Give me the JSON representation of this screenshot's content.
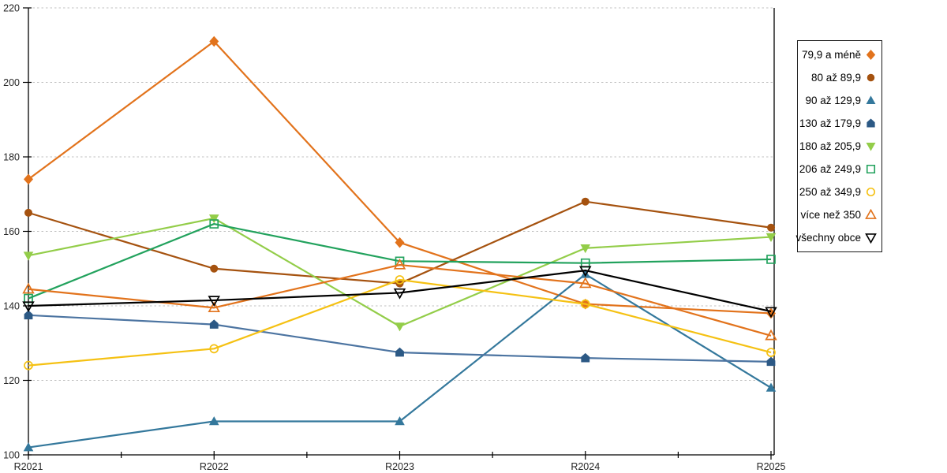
{
  "chart_data": {
    "type": "line",
    "title": "",
    "categories": [
      "R2021",
      "R2022",
      "R2023",
      "R2024",
      "R2025"
    ],
    "x_tick_labels": [
      "R2021",
      "R2022",
      "R2023",
      "R2024",
      "R2025"
    ],
    "y_tick_labels": [
      "100",
      "120",
      "140",
      "160",
      "180",
      "200",
      "220"
    ],
    "y_axis": {
      "min": 100,
      "max": 220,
      "step": 20
    },
    "grid": "horizontal-dashed",
    "legend_position": "right",
    "series": [
      {
        "name": "79,9 a méně",
        "color": "#E2731C",
        "marker": "diamond",
        "fill": "filled",
        "values": [
          174,
          211,
          157,
          140.5,
          138
        ]
      },
      {
        "name": "80 až 89,9",
        "color": "#A5520F",
        "marker": "circle",
        "fill": "filled",
        "values": [
          165,
          150,
          146,
          168,
          161
        ]
      },
      {
        "name": "90 až 129,9",
        "color": "#34789C",
        "marker": "triangle-up",
        "fill": "filled",
        "values": [
          102,
          109,
          109,
          148.5,
          118
        ]
      },
      {
        "name": "130 až 179,9",
        "color": "#4C74A1",
        "marker_color": "#2C5985",
        "marker": "pentagon",
        "fill": "filled",
        "values": [
          137.5,
          135,
          127.5,
          126,
          125
        ]
      },
      {
        "name": "180 až 205,9",
        "color": "#93CD49",
        "marker": "triangle-down",
        "fill": "filled",
        "values": [
          153.5,
          163.5,
          134.5,
          155.5,
          158.5
        ]
      },
      {
        "name": "206 až 249,9",
        "color": "#22A25D",
        "marker": "square",
        "fill": "open",
        "values": [
          142,
          162,
          152,
          151.5,
          152.5
        ]
      },
      {
        "name": "250 až 349,9",
        "color": "#F5C113",
        "marker": "circle",
        "fill": "open",
        "values": [
          124,
          128.5,
          147,
          140.5,
          127.5
        ]
      },
      {
        "name": "více než 350",
        "color": "#E2731C",
        "marker": "triangle-up",
        "fill": "open",
        "values": [
          144.5,
          139.5,
          151,
          146,
          132
        ]
      },
      {
        "name": "všechny obce",
        "color": "#000000",
        "marker": "triangle-down",
        "fill": "open",
        "values": [
          140,
          141.5,
          143.5,
          149.5,
          138.5
        ]
      }
    ]
  },
  "colors": {
    "background": "#FFFFFF",
    "grid": "#C0C0C0",
    "axis": "#000000",
    "tick_label": "#262626",
    "legend_border": "#1A1A1A",
    "legend_text": "#000000"
  }
}
